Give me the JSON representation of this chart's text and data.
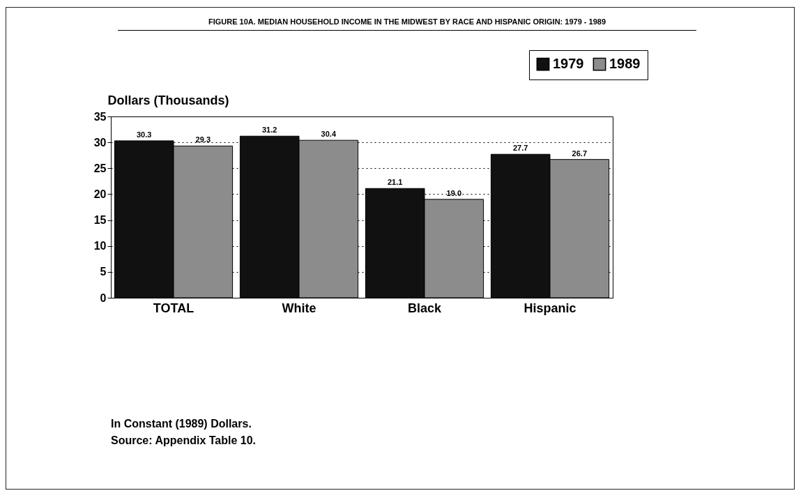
{
  "chart_data": {
    "type": "bar",
    "title": "FIGURE 10A.  MEDIAN HOUSEHOLD INCOME IN THE MIDWEST BY RACE AND HISPANIC ORIGIN: 1979 - 1989",
    "ylabel": "Dollars (Thousands)",
    "categories": [
      "TOTAL",
      "White",
      "Black",
      "Hispanic"
    ],
    "series": [
      {
        "name": "1979",
        "color": "#111111",
        "values": [
          30.3,
          31.2,
          21.1,
          27.7
        ],
        "value_labels": [
          "30.3",
          "31.2",
          "21.1",
          "27.7"
        ]
      },
      {
        "name": "1989",
        "color": "#8c8c8c",
        "values": [
          29.3,
          30.4,
          19.0,
          26.7
        ],
        "value_labels": [
          "29.3",
          "30.4",
          "19.0",
          "26.7"
        ]
      }
    ],
    "ylim": [
      0,
      35
    ],
    "yticks": [
      0,
      5,
      10,
      15,
      20,
      25,
      30,
      35
    ],
    "grid": "y",
    "legend": "top right",
    "annotations": [
      "In Constant (1989) Dollars.",
      "Source:  Appendix Table 10."
    ]
  }
}
